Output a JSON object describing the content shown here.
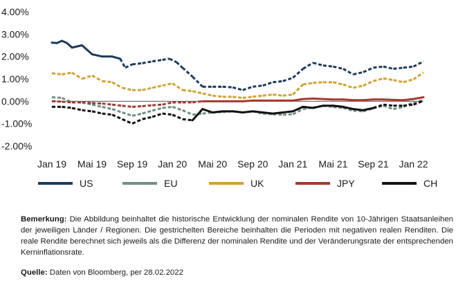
{
  "chart_data": {
    "type": "line",
    "y_ticks": [
      "4.00%",
      "3.00%",
      "2.00%",
      "1.00%",
      "0.00%",
      "-1.00%",
      "-2.00%"
    ],
    "ylim": [
      -2.0,
      4.0
    ],
    "x_tick_labels": [
      "Jan 19",
      "Mai 19",
      "Sep 19",
      "Jan 20",
      "Mai 20",
      "Sep 20",
      "Jan 21",
      "Mai 21",
      "Sep 21",
      "Jan 22"
    ],
    "x_ticks_month_index": [
      0,
      4,
      8,
      12,
      16,
      20,
      24,
      28,
      32,
      36
    ],
    "x_range_months": [
      0,
      38
    ],
    "grid": false,
    "legend_position": "bottom",
    "series": [
      {
        "name": "US",
        "color": "#1b3a5c",
        "x": [
          0,
          0.5,
          1,
          1.5,
          2,
          3,
          4,
          5,
          6,
          6.8,
          7.3,
          8,
          9,
          10,
          11,
          11.7,
          12.4,
          13,
          14,
          15,
          16,
          17,
          18,
          19,
          20,
          21,
          22,
          23,
          24,
          25,
          26,
          27,
          28,
          29,
          30,
          31,
          32,
          33,
          34,
          35,
          36,
          37
        ],
        "values": [
          2.62,
          2.6,
          2.7,
          2.6,
          2.4,
          2.5,
          2.1,
          2.0,
          2.0,
          1.9,
          1.5,
          1.65,
          1.7,
          1.78,
          1.85,
          1.9,
          1.75,
          1.5,
          1.1,
          0.65,
          0.65,
          0.65,
          0.62,
          0.5,
          0.65,
          0.7,
          0.85,
          0.9,
          1.05,
          1.45,
          1.72,
          1.6,
          1.55,
          1.45,
          1.2,
          1.3,
          1.5,
          1.55,
          1.45,
          1.5,
          1.55,
          1.78
        ],
        "negative_real_yield_from": 6.8
      },
      {
        "name": "EU",
        "color": "#6f8f86",
        "x": [
          0,
          1,
          2,
          3,
          4,
          5,
          6,
          7,
          8,
          9,
          10,
          11,
          12,
          13,
          14,
          15,
          16,
          17,
          18,
          19,
          20,
          21,
          22,
          23,
          24,
          25,
          26,
          27,
          28,
          29,
          30,
          31,
          32,
          33,
          34,
          35,
          36,
          37
        ],
        "values": [
          0.18,
          0.15,
          -0.05,
          -0.05,
          -0.15,
          -0.25,
          -0.35,
          -0.5,
          -0.65,
          -0.55,
          -0.42,
          -0.3,
          -0.25,
          -0.4,
          -0.6,
          -0.55,
          -0.5,
          -0.48,
          -0.45,
          -0.5,
          -0.45,
          -0.55,
          -0.58,
          -0.6,
          -0.58,
          -0.35,
          -0.28,
          -0.2,
          -0.25,
          -0.3,
          -0.42,
          -0.45,
          -0.32,
          -0.2,
          -0.35,
          -0.25,
          -0.05,
          0.05
        ],
        "negative_real_yield_from": 0
      },
      {
        "name": "UK",
        "color": "#d4a12c",
        "x": [
          0,
          1,
          2,
          3,
          4,
          5,
          6,
          7,
          8,
          9,
          10,
          11,
          12,
          13,
          14,
          15,
          16,
          17,
          18,
          19,
          20,
          21,
          22,
          23,
          24,
          25,
          26,
          27,
          28,
          29,
          30,
          31,
          32,
          33,
          34,
          35,
          36,
          37
        ],
        "values": [
          1.25,
          1.2,
          1.28,
          1.0,
          1.15,
          0.9,
          0.85,
          0.6,
          0.5,
          0.5,
          0.6,
          0.7,
          0.8,
          0.5,
          0.45,
          0.35,
          0.25,
          0.2,
          0.2,
          0.15,
          0.2,
          0.25,
          0.3,
          0.25,
          0.3,
          0.75,
          0.82,
          0.85,
          0.85,
          0.75,
          0.6,
          0.7,
          0.9,
          1.02,
          0.95,
          0.85,
          0.98,
          1.28
        ],
        "negative_real_yield_from": 0
      },
      {
        "name": "JPY",
        "color": "#a5392b",
        "x": [
          0,
          1,
          2,
          3,
          4,
          5,
          6,
          7,
          8,
          9,
          10,
          11,
          12,
          13,
          14,
          15,
          16,
          17,
          18,
          19,
          20,
          21,
          22,
          23,
          24,
          25,
          26,
          27,
          28,
          29,
          30,
          31,
          32,
          33,
          34,
          35,
          36,
          37
        ],
        "values": [
          0.0,
          -0.02,
          -0.05,
          -0.05,
          -0.08,
          -0.1,
          -0.15,
          -0.2,
          -0.25,
          -0.22,
          -0.18,
          -0.15,
          -0.05,
          -0.05,
          -0.05,
          0.0,
          0.0,
          0.0,
          0.0,
          0.0,
          0.03,
          0.03,
          0.03,
          0.03,
          0.03,
          0.1,
          0.12,
          0.1,
          0.08,
          0.08,
          0.05,
          0.05,
          0.08,
          0.08,
          0.06,
          0.05,
          0.1,
          0.18
        ],
        "negative_real_yield_from": 0,
        "solid_from": 15
      },
      {
        "name": "CH",
        "color": "#111111",
        "x": [
          0,
          1,
          2,
          3,
          4,
          5,
          6,
          7,
          8,
          9,
          10,
          11,
          12,
          13,
          14,
          15,
          16,
          17,
          18,
          19,
          20,
          21,
          22,
          23,
          24,
          25,
          26,
          27,
          28,
          29,
          30,
          31,
          32,
          33,
          34,
          35,
          36,
          37
        ],
        "values": [
          -0.25,
          -0.25,
          -0.3,
          -0.4,
          -0.45,
          -0.55,
          -0.6,
          -0.8,
          -1.0,
          -0.8,
          -0.7,
          -0.55,
          -0.6,
          -0.8,
          -0.85,
          -0.35,
          -0.5,
          -0.45,
          -0.45,
          -0.5,
          -0.45,
          -0.5,
          -0.55,
          -0.5,
          -0.45,
          -0.25,
          -0.3,
          -0.2,
          -0.2,
          -0.25,
          -0.35,
          -0.4,
          -0.3,
          -0.15,
          -0.2,
          -0.2,
          -0.15,
          0.02
        ],
        "negative_real_yield_from": 0,
        "solid_from": 14,
        "dashed_from": 32
      }
    ]
  },
  "note": {
    "label": "Bemerkung:",
    "text": " Die Abbildung beinhaltet die historische Entwicklung der nominalen Rendite von 10-Jährigen Staatsanleihen der jeweiligen Länder / Regionen. Die gestrichelten Bereiche beinhalten die Perioden mit negativen realen Renditen. Die reale Rendite berechnet sich jeweils als die Differenz der nominalen Rendite und der Veränderungsrate der entsprechenden Kerninflationsrate.",
    "source_label": "Quelle:",
    "source_text": " Daten von Bloomberg, per 28.02.2022"
  }
}
